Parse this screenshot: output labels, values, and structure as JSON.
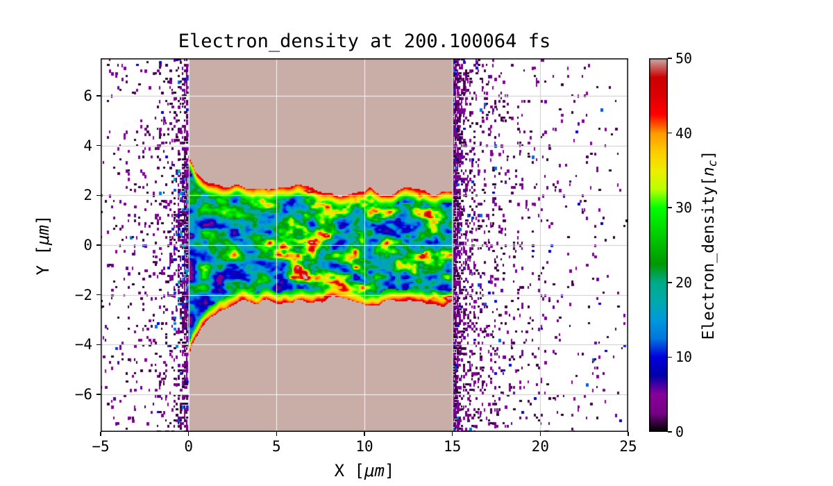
{
  "chart_data": {
    "type": "heatmap",
    "title": "Electron_density at 200.100064 fs",
    "xlabel": {
      "text": "X [μm]",
      "pre": "X [",
      "unit": "μm",
      "post": "]"
    },
    "ylabel": {
      "text": "Y [μm]",
      "pre": "Y [",
      "unit": "μm",
      "post": "]"
    },
    "xlim": [
      -5,
      25
    ],
    "ylim": [
      -7.5,
      7.5
    ],
    "xticks": {
      "values": [
        -5,
        0,
        5,
        10,
        15,
        20,
        25
      ],
      "labels": [
        "−5",
        "0",
        "5",
        "10",
        "15",
        "20",
        "25"
      ]
    },
    "yticks": {
      "values": [
        -6,
        -4,
        -2,
        0,
        2,
        4,
        6
      ],
      "labels": [
        "−6",
        "−4",
        "−2",
        "0",
        "2",
        "4",
        "6"
      ]
    },
    "grid": {
      "show": true,
      "x": [
        0,
        5,
        10,
        15,
        20
      ],
      "y": [
        -6,
        -4,
        -2,
        0,
        2,
        4,
        6
      ]
    },
    "colorbar": {
      "label_text": "Electron_density[n_c]",
      "label_parts": {
        "pre": "Electron_density[",
        "var": "n",
        "sub": "c",
        "post": "]"
      },
      "ticks": {
        "values": [
          0,
          10,
          20,
          30,
          40,
          50
        ],
        "labels": [
          "0",
          "10",
          "20",
          "30",
          "40",
          "50"
        ]
      },
      "vmin": 0,
      "vmax": 50
    },
    "colormap": {
      "name": "nipy_spectral-like",
      "stops": [
        [
          0.0,
          "#000000"
        ],
        [
          0.05,
          "#770088"
        ],
        [
          0.1,
          "#880099"
        ],
        [
          0.15,
          "#0000aa"
        ],
        [
          0.2,
          "#0000dd"
        ],
        [
          0.25,
          "#0077dd"
        ],
        [
          0.3,
          "#0099dd"
        ],
        [
          0.35,
          "#00aaaa"
        ],
        [
          0.4,
          "#00aa88"
        ],
        [
          0.45,
          "#009900"
        ],
        [
          0.5,
          "#00bb00"
        ],
        [
          0.55,
          "#00dd00"
        ],
        [
          0.6,
          "#00ff00"
        ],
        [
          0.65,
          "#bbff00"
        ],
        [
          0.7,
          "#eeee00"
        ],
        [
          0.75,
          "#ffcc00"
        ],
        [
          0.8,
          "#ff9900"
        ],
        [
          0.85,
          "#ff0000"
        ],
        [
          0.9,
          "#dd0000"
        ],
        [
          0.95,
          "#cc0000"
        ],
        [
          1.0,
          "#c9aea8"
        ]
      ]
    },
    "features": {
      "slab": {
        "x_range": [
          0,
          15
        ],
        "density": 50,
        "color": "#c9aea8",
        "description": "overdense target slab saturated at 50 n_c"
      },
      "channel": {
        "x_range": [
          0,
          15
        ],
        "half_width": 2.2,
        "funnel_extra_top": 1.5,
        "funnel_extra_bottom": 2.1,
        "density_range": [
          1,
          48
        ],
        "description": "turbulent laser-drilled plasma channel along y≈0 with red/yellow rim contours"
      },
      "vacuum_noise": {
        "max_density": 6,
        "left_decay_um": 2.4,
        "right_decay_um": 2.6,
        "description": "sparse low-density electron speckles expanding from slab surfaces at x=0 and x=15"
      }
    }
  }
}
